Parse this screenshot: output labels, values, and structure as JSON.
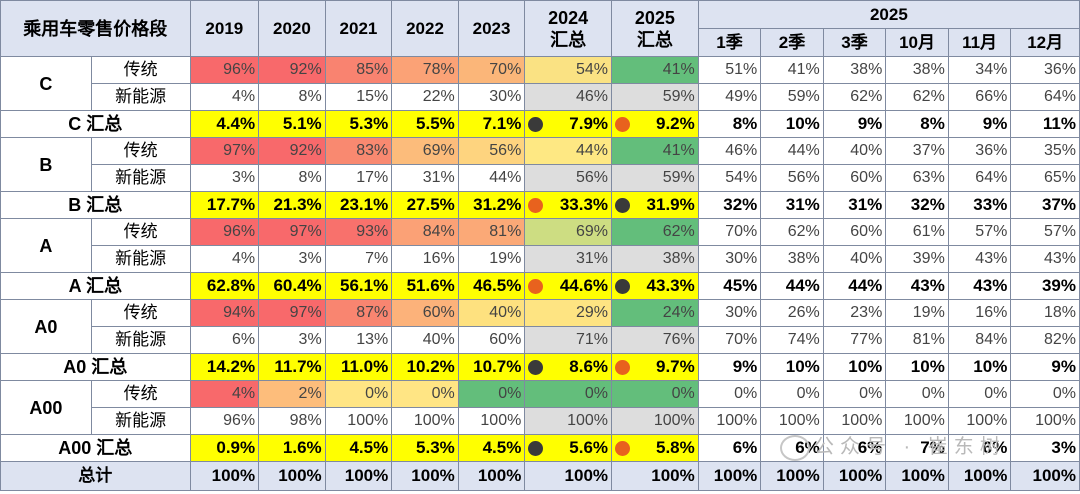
{
  "header": {
    "title": "乘用车零售价格段",
    "years": [
      "2019",
      "2020",
      "2021",
      "2022",
      "2023"
    ],
    "y2024": "2024",
    "y2025": "2025",
    "summary": "汇总",
    "group2025": "2025",
    "periods": [
      "1季",
      "2季",
      "3季",
      "10月",
      "11月",
      "12月"
    ]
  },
  "rows": [
    {
      "segment": "C",
      "sub": "传统",
      "values": [
        "96%",
        "92%",
        "85%",
        "78%",
        "70%",
        "54%",
        "41%",
        "51%",
        "41%",
        "38%",
        "38%",
        "34%",
        "36%"
      ]
    },
    {
      "sub": "新能源",
      "values": [
        "4%",
        "8%",
        "15%",
        "22%",
        "30%",
        "46%",
        "59%",
        "49%",
        "59%",
        "62%",
        "62%",
        "66%",
        "64%"
      ]
    },
    {
      "total": "C 汇总",
      "values": [
        "4.4%",
        "5.1%",
        "5.3%",
        "5.5%",
        "7.1%",
        "7.9%",
        "9.2%",
        "8%",
        "10%",
        "9%",
        "8%",
        "9%",
        "11%"
      ]
    },
    {
      "segment": "B",
      "sub": "传统",
      "values": [
        "97%",
        "92%",
        "83%",
        "69%",
        "56%",
        "44%",
        "41%",
        "46%",
        "44%",
        "40%",
        "37%",
        "36%",
        "35%"
      ]
    },
    {
      "sub": "新能源",
      "values": [
        "3%",
        "8%",
        "17%",
        "31%",
        "44%",
        "56%",
        "59%",
        "54%",
        "56%",
        "60%",
        "63%",
        "64%",
        "65%"
      ]
    },
    {
      "total": "B 汇总",
      "values": [
        "17.7%",
        "21.3%",
        "23.1%",
        "27.5%",
        "31.2%",
        "33.3%",
        "31.9%",
        "32%",
        "31%",
        "31%",
        "32%",
        "33%",
        "37%"
      ]
    },
    {
      "segment": "A",
      "sub": "传统",
      "values": [
        "96%",
        "97%",
        "93%",
        "84%",
        "81%",
        "69%",
        "62%",
        "70%",
        "62%",
        "60%",
        "61%",
        "57%",
        "57%"
      ]
    },
    {
      "sub": "新能源",
      "values": [
        "4%",
        "3%",
        "7%",
        "16%",
        "19%",
        "31%",
        "38%",
        "30%",
        "38%",
        "40%",
        "39%",
        "43%",
        "43%"
      ]
    },
    {
      "total": "A 汇总",
      "values": [
        "62.8%",
        "60.4%",
        "56.1%",
        "51.6%",
        "46.5%",
        "44.6%",
        "43.3%",
        "45%",
        "44%",
        "44%",
        "43%",
        "43%",
        "39%"
      ]
    },
    {
      "segment": "A0",
      "sub": "传统",
      "values": [
        "94%",
        "97%",
        "87%",
        "60%",
        "40%",
        "29%",
        "24%",
        "30%",
        "26%",
        "23%",
        "19%",
        "16%",
        "18%"
      ]
    },
    {
      "sub": "新能源",
      "values": [
        "6%",
        "3%",
        "13%",
        "40%",
        "60%",
        "71%",
        "76%",
        "70%",
        "74%",
        "77%",
        "81%",
        "84%",
        "82%"
      ]
    },
    {
      "total": "A0 汇总",
      "values": [
        "14.2%",
        "11.7%",
        "11.0%",
        "10.2%",
        "10.7%",
        "8.6%",
        "9.7%",
        "9%",
        "10%",
        "10%",
        "10%",
        "10%",
        "9%"
      ]
    },
    {
      "segment": "A00",
      "sub": "传统",
      "values": [
        "4%",
        "2%",
        "0%",
        "0%",
        "0%",
        "0%",
        "0%",
        "0%",
        "0%",
        "0%",
        "0%",
        "0%",
        "0%"
      ]
    },
    {
      "sub": "新能源",
      "values": [
        "96%",
        "98%",
        "100%",
        "100%",
        "100%",
        "100%",
        "100%",
        "100%",
        "100%",
        "100%",
        "100%",
        "100%",
        "100%"
      ]
    },
    {
      "total": "A00 汇总",
      "values": [
        "0.9%",
        "1.6%",
        "4.5%",
        "5.3%",
        "4.5%",
        "5.6%",
        "5.8%",
        "6%",
        "6%",
        "6%",
        "7%",
        "6%",
        "3%"
      ]
    }
  ],
  "grand_total": {
    "label": "总计",
    "values": [
      "100%",
      "100%",
      "100%",
      "100%",
      "100%",
      "100%",
      "100%",
      "100%",
      "100%",
      "100%",
      "100%",
      "100%",
      "100%"
    ]
  },
  "colors": {
    "header_bg": "#dde3f1",
    "highlight_yellow": "#ffff00",
    "dot_black": "#3a3a3a",
    "dot_orange": "#e8621e"
  },
  "trad_colors": [
    [
      "#f8696b",
      "#f8696b",
      "#f98370",
      "#fba276",
      "#fbb679",
      "#fae283",
      "#63be7b"
    ],
    [
      "#f8696b",
      "#f8696b",
      "#f98970",
      "#fcbc7b",
      "#fed47f",
      "#fee883",
      "#63be7b"
    ],
    [
      "#f8696b",
      "#f8696b",
      "#f8716c",
      "#fba176",
      "#fba977",
      "#cddd82",
      "#63be7b"
    ],
    [
      "#f8696b",
      "#f8696b",
      "#f98570",
      "#fcb27a",
      "#fee17f",
      "#fee482",
      "#63be7b"
    ],
    [
      "#f8696b",
      "#fdbd7b",
      "#ffe584",
      "#ffe584",
      "#63be7b",
      "#63be7b",
      "#63be7b"
    ]
  ],
  "summary_colors": [
    "#dddddd",
    "#dddddd"
  ],
  "dots": [
    [
      "black",
      "orange"
    ],
    [
      "orange",
      "black"
    ],
    [
      "orange",
      "black"
    ],
    [
      "black",
      "orange"
    ],
    [
      "black",
      "orange"
    ]
  ],
  "watermark": "公众号 · 崔东树"
}
